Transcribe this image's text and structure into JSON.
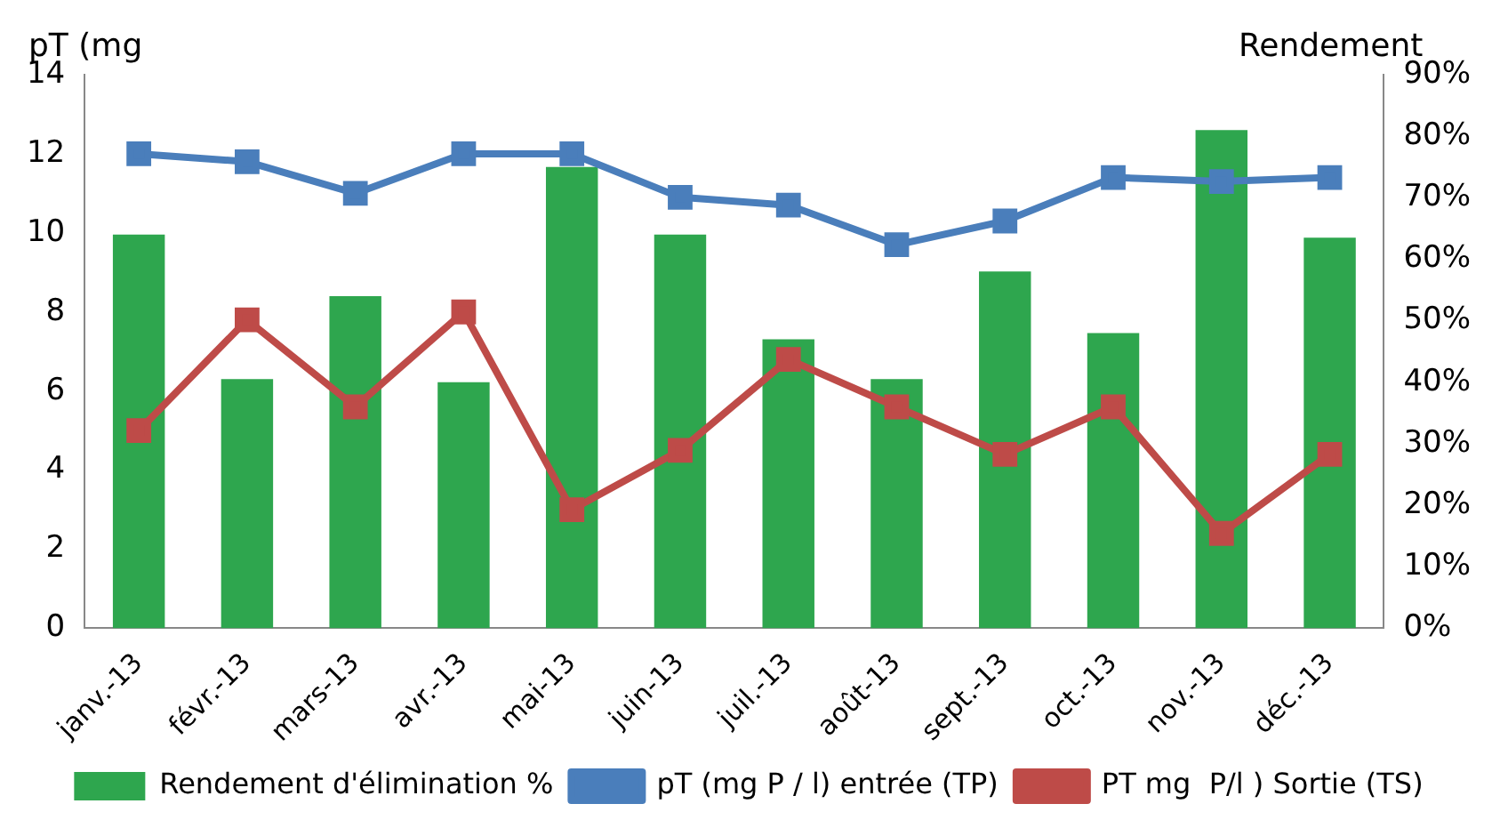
{
  "chart_data": {
    "type": "bar",
    "ylabel": "pT (mg",
    "y2label": "Rendement",
    "categories": [
      "janv.-13",
      "févr.-13",
      "mars-13",
      "avr.-13",
      "mai-13",
      "juin-13",
      "juil.-13",
      "août-13",
      "sept.-13",
      "oct.-13",
      "nov.-13",
      "déc.-13"
    ],
    "series": [
      {
        "name": "Rendement d'élimination %",
        "axis": "y2",
        "color": "#2ea64e",
        "values": [
          64,
          40.5,
          54,
          40,
          75,
          64,
          47,
          40.5,
          58,
          48,
          81,
          63.5
        ]
      },
      {
        "name": "pT (mg P / l) entrée (TP)",
        "type": "line",
        "color": "#4a7ebb",
        "marker": "square",
        "values": [
          12.0,
          11.8,
          11.0,
          12.0,
          12.0,
          10.9,
          10.7,
          9.7,
          10.3,
          11.4,
          11.3,
          11.4
        ]
      },
      {
        "name": "PT mg  P/l ) Sortie (TS)",
        "type": "line",
        "color": "#be4b48",
        "marker": "square",
        "values": [
          5.0,
          7.8,
          5.6,
          8.0,
          3.0,
          4.5,
          6.8,
          5.6,
          4.4,
          5.6,
          2.4,
          4.4
        ]
      }
    ],
    "ylim": [
      0,
      14
    ],
    "yticks": [
      0,
      2,
      4,
      6,
      8,
      10,
      12,
      14
    ],
    "y2lim": [
      0,
      90
    ],
    "y2ticks": [
      {
        "value": 0,
        "label": "0%"
      },
      {
        "value": 10,
        "label": "10%"
      },
      {
        "value": 20,
        "label": "20%"
      },
      {
        "value": 30,
        "label": "30%"
      },
      {
        "value": 40,
        "label": "40%"
      },
      {
        "value": 50,
        "label": "50%"
      },
      {
        "value": 60,
        "label": "60%"
      },
      {
        "value": 70,
        "label": "70%"
      },
      {
        "value": 80,
        "label": "80%"
      },
      {
        "value": 90,
        "label": "90%"
      }
    ],
    "grid": false,
    "legend": "bottom"
  }
}
